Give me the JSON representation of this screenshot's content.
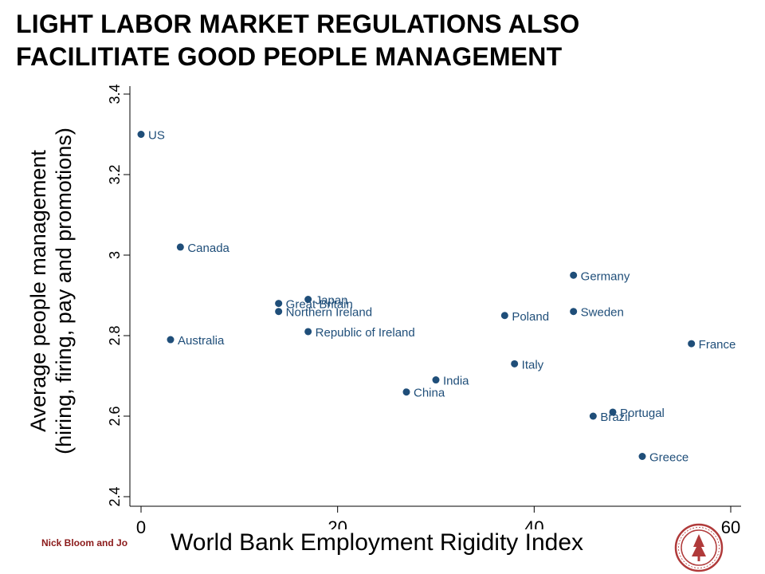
{
  "title": {
    "line1": "LIGHT LABOR MARKET REGULATIONS ALSO",
    "line2": "FACILITIATE GOOD PEOPLE MANAGEMENT"
  },
  "footer": {
    "text": "Nick Bloom and Jo"
  },
  "logo": {
    "icon": "university-seal-icon",
    "color": "#b03a3a"
  },
  "chart_data": {
    "type": "scatter",
    "xlabel": "World Bank Employment Rigidity Index",
    "ylabel_line1": "Average people management",
    "ylabel_line2": "(hiring, firing, pay and promotions)",
    "xlim": [
      0,
      60
    ],
    "ylim": [
      2.4,
      3.4
    ],
    "xticks": [
      0,
      20,
      40,
      60
    ],
    "yticks": [
      2.4,
      2.6,
      2.8,
      3.0,
      3.2,
      3.4
    ],
    "ytick_labels": [
      "2.4",
      "2.6",
      "2.8",
      "3",
      "3.2",
      "3.4"
    ],
    "grid": false,
    "marker_color": "#1f4e79",
    "label_color": "#1f4e79",
    "points": [
      {
        "label": "US",
        "x": 0,
        "y": 3.3
      },
      {
        "label": "Canada",
        "x": 4,
        "y": 3.02
      },
      {
        "label": "Australia",
        "x": 3,
        "y": 2.79
      },
      {
        "label": "Japan",
        "x": 17,
        "y": 2.89
      },
      {
        "label": "Great Britain",
        "x": 14,
        "y": 2.88
      },
      {
        "label": "Northern Ireland",
        "x": 14,
        "y": 2.86
      },
      {
        "label": "Republic of Ireland",
        "x": 17,
        "y": 2.81
      },
      {
        "label": "India",
        "x": 30,
        "y": 2.69
      },
      {
        "label": "China",
        "x": 27,
        "y": 2.66
      },
      {
        "label": "Poland",
        "x": 37,
        "y": 2.85
      },
      {
        "label": "Italy",
        "x": 38,
        "y": 2.73
      },
      {
        "label": "Germany",
        "x": 44,
        "y": 2.95
      },
      {
        "label": "Sweden",
        "x": 44,
        "y": 2.86
      },
      {
        "label": "France",
        "x": 56,
        "y": 2.78
      },
      {
        "label": "Brazil",
        "x": 46,
        "y": 2.6
      },
      {
        "label": "Portugal",
        "x": 48,
        "y": 2.61
      },
      {
        "label": "Greece",
        "x": 51,
        "y": 2.5
      }
    ]
  }
}
